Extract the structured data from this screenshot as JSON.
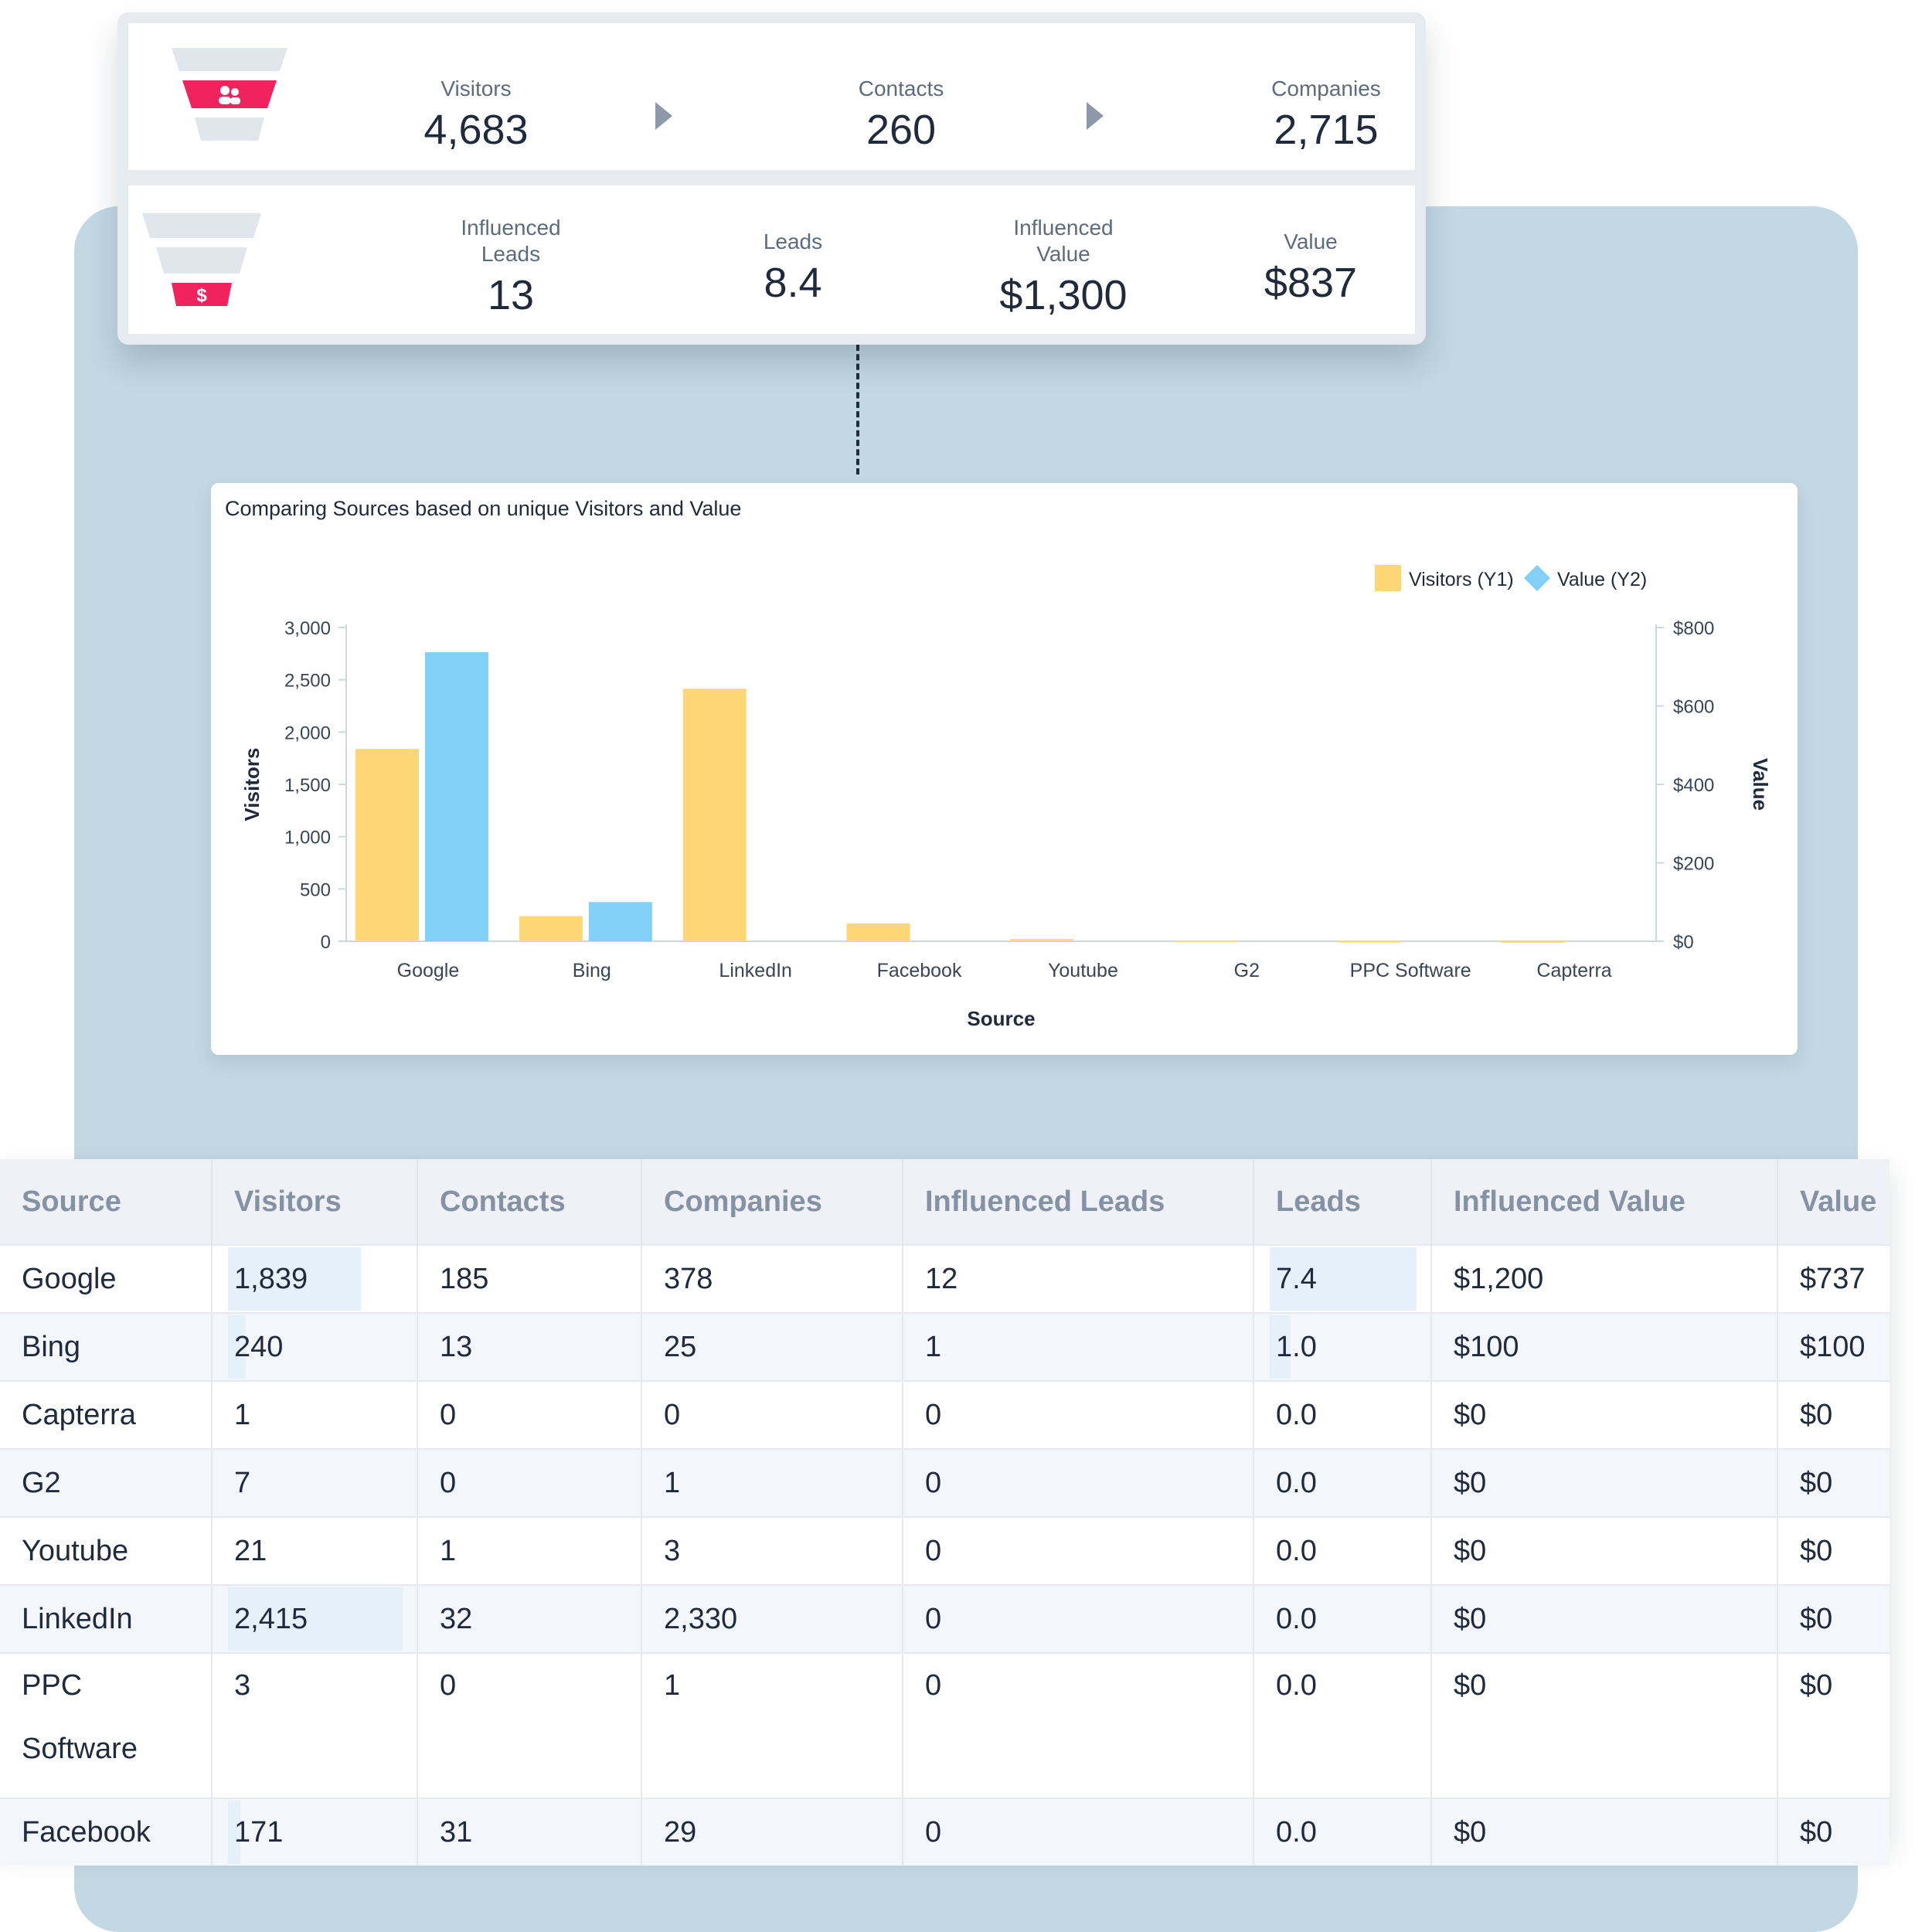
{
  "funnel_top": {
    "metrics": [
      {
        "label": "Visitors",
        "value": "4,683"
      },
      {
        "label": "Contacts",
        "value": "260"
      },
      {
        "label": "Companies",
        "value": "2,715"
      }
    ]
  },
  "funnel_bottom": {
    "metrics": [
      {
        "label": "Influenced\nLeads",
        "value": "13"
      },
      {
        "label": "Leads",
        "value": "8.4"
      },
      {
        "label": "Influenced\nValue",
        "value": "$1,300"
      },
      {
        "label": "Value",
        "value": "$837"
      }
    ]
  },
  "colors": {
    "visitors_bar": "#fdd776",
    "value_bar": "#82cff8",
    "funnel_accent": "#f0235f",
    "funnel_grey": "#e1e6ec"
  },
  "chart_data": {
    "type": "bar",
    "title": "Comparing Sources based on unique Visitors and Value",
    "xlabel": "Source",
    "ylabel": "Visitors",
    "y2label": "Value",
    "categories": [
      "Google",
      "Bing",
      "LinkedIn",
      "Facebook",
      "Youtube",
      "G2",
      "PPC Software",
      "Capterra"
    ],
    "series": [
      {
        "name": "Visitors (Y1)",
        "axis": "y1",
        "values": [
          1839,
          240,
          2415,
          171,
          21,
          7,
          3,
          1
        ]
      },
      {
        "name": "Value (Y2)",
        "axis": "y2",
        "values": [
          737,
          100,
          0,
          0,
          0,
          0,
          0,
          0
        ]
      }
    ],
    "ylim": [
      0,
      3000
    ],
    "y2lim": [
      0,
      800
    ],
    "yticks": [
      "3,000",
      "2,500",
      "2,000",
      "1,500",
      "1,000",
      "500",
      "0"
    ],
    "y2ticks": [
      "$800",
      "$600",
      "$400",
      "$200",
      "$0"
    ],
    "legend": "top-right",
    "grid": false
  },
  "table": {
    "headers": [
      "Source",
      "Visitors",
      "Contacts",
      "Companies",
      "Influenced Leads",
      "Leads",
      "Influenced Value",
      "Value"
    ],
    "rows": [
      [
        "Google",
        "1,839",
        "185",
        "378",
        "12",
        "7.4",
        "$1,200",
        "$737"
      ],
      [
        "Bing",
        "240",
        "13",
        "25",
        "1",
        "1.0",
        "$100",
        "$100"
      ],
      [
        "Capterra",
        "1",
        "0",
        "0",
        "0",
        "0.0",
        "$0",
        "$0"
      ],
      [
        "G2",
        "7",
        "0",
        "1",
        "0",
        "0.0",
        "$0",
        "$0"
      ],
      [
        "Youtube",
        "21",
        "1",
        "3",
        "0",
        "0.0",
        "$0",
        "$0"
      ],
      [
        "LinkedIn",
        "2,415",
        "32",
        "2,330",
        "0",
        "0.0",
        "$0",
        "$0"
      ],
      [
        "PPC Software",
        "3",
        "0",
        "1",
        "0",
        "0.0",
        "$0",
        "$0"
      ],
      [
        "Facebook",
        "171",
        "31",
        "29",
        "0",
        "0.0",
        "$0",
        "$0"
      ]
    ],
    "visitors_bar_fraction": [
      0.76,
      0.1,
      0,
      0,
      0,
      1.0,
      0,
      0.07
    ],
    "leads_bar_fraction": [
      1.0,
      0.14,
      0,
      0,
      0,
      0,
      0,
      0
    ]
  }
}
